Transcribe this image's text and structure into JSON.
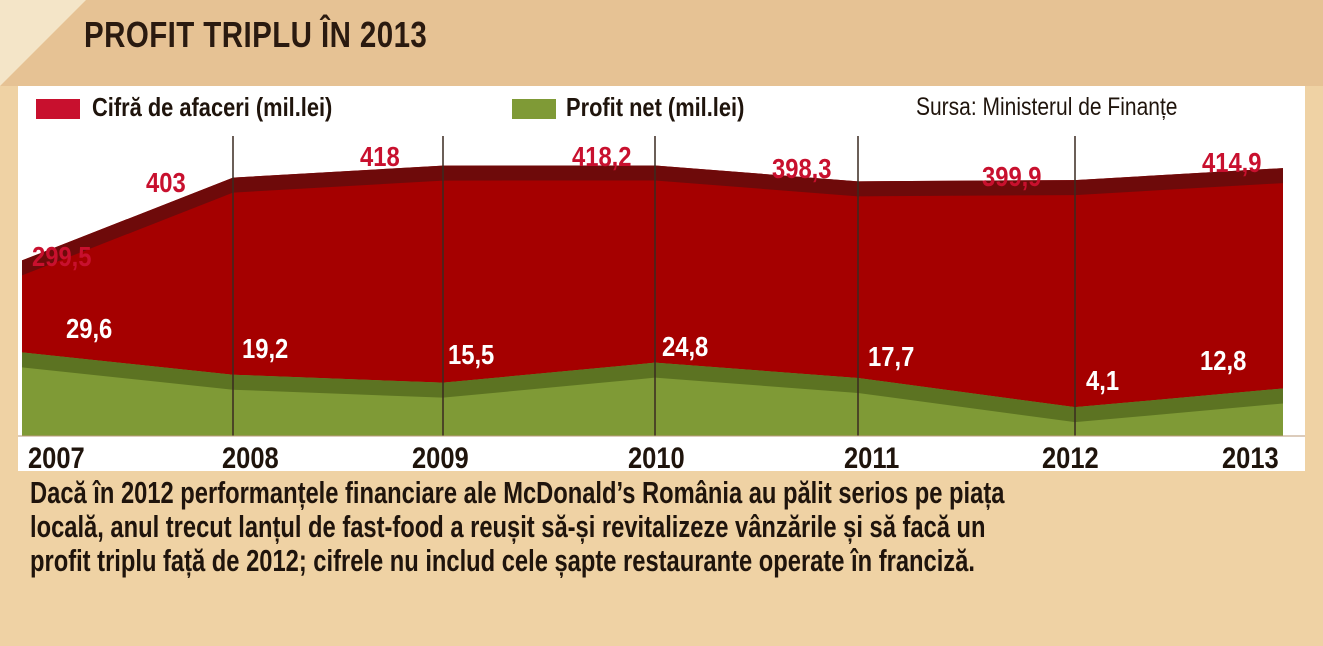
{
  "title": "PROFIT TRIPLU ÎN 2013",
  "legend": {
    "revenue_label": "Cifră de afaceri (mil.lei)",
    "profit_label": "Profit net (mil.lei)",
    "source": "Sursa: Ministerul de Finanțe"
  },
  "colors": {
    "revenue_fill": "#a50000",
    "revenue_edge": "#6e0a0a",
    "revenue_label": "#c8102e",
    "profit_fill": "#7f9a36",
    "profit_edge": "#5c7322",
    "profit_label": "#ffffff",
    "background": "#efd2a4",
    "title_band": "#e6c294"
  },
  "chart_data": {
    "type": "area",
    "x": [
      "2007",
      "2008",
      "2009",
      "2010",
      "2011",
      "2012",
      "2013"
    ],
    "series": [
      {
        "name": "Cifră de afaceri (mil.lei)",
        "values": [
          299.5,
          403,
          418,
          418.2,
          398.3,
          399.9,
          414.9
        ],
        "labels": [
          "299,5",
          "403",
          "418",
          "418,2",
          "398,3",
          "399,9",
          "414,9"
        ]
      },
      {
        "name": "Profit net (mil.lei)",
        "values": [
          29.6,
          19.2,
          15.5,
          24.8,
          17.7,
          4.1,
          12.8
        ],
        "labels": [
          "29,6",
          "19,2",
          "15,5",
          "24,8",
          "17,7",
          "4,1",
          "12,8"
        ]
      }
    ],
    "grid": "vertical"
  },
  "caption_lines": [
    "Dacă în 2012 performanțele financiare ale McDonald’s România au pălit serios pe piața",
    "locală, anul trecut lanțul de fast-food a reușit să-și revitalizeze vânzările și să facă un",
    "profit triplu față de 2012; cifrele nu includ cele șapte restaurante operate în franciză."
  ]
}
